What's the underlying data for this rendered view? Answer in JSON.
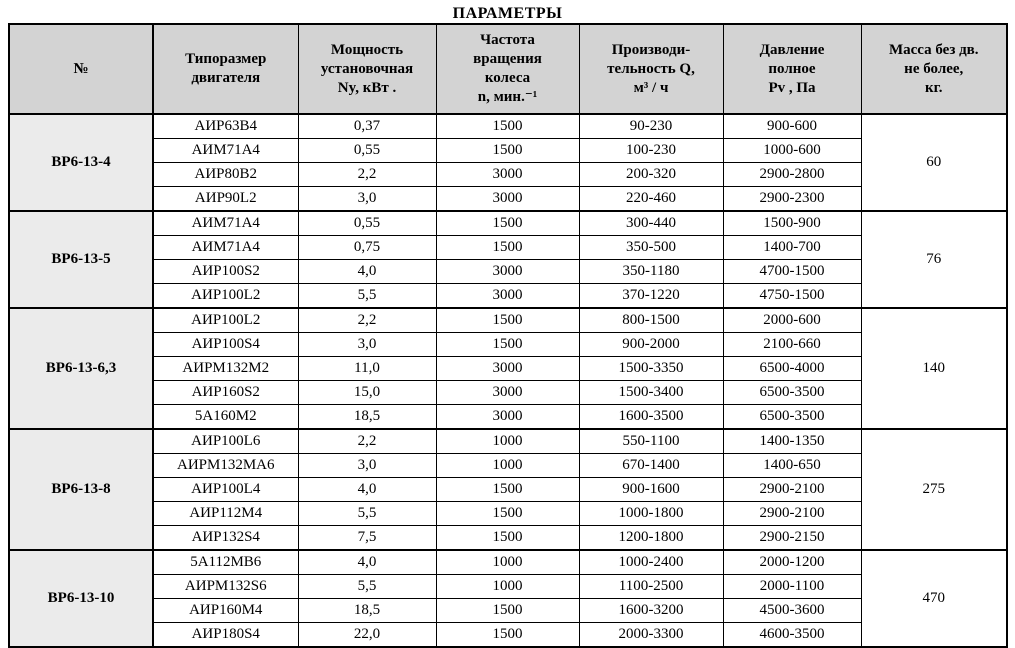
{
  "title": "ПАРАМЕТРЫ",
  "colors": {
    "header_bg": "#d3d3d3",
    "group_bg": "#ebebeb",
    "border": "#000000"
  },
  "table": {
    "headers": [
      "№",
      "Типоразмер\nдвигателя",
      "Мощность\nустановочная\nNy, кВт .",
      "Частота\nвращения\nколеса\nn, мин.⁻¹",
      "Производи-\nтельность Q,\nм³ / ч",
      "Давление\nполное\nPv , Па",
      "Масса без дв.\nне более,\nкг."
    ],
    "groups": [
      {
        "label": "ВР6-13-4",
        "mass": "60",
        "rows": [
          [
            "АИР63В4",
            "0,37",
            "1500",
            "90-230",
            "900-600"
          ],
          [
            "АИМ71А4",
            "0,55",
            "1500",
            "100-230",
            "1000-600"
          ],
          [
            "АИР80В2",
            "2,2",
            "3000",
            "200-320",
            "2900-2800"
          ],
          [
            "АИР90L2",
            "3,0",
            "3000",
            "220-460",
            "2900-2300"
          ]
        ]
      },
      {
        "label": "ВР6-13-5",
        "mass": "76",
        "rows": [
          [
            "АИМ71А4",
            "0,55",
            "1500",
            "300-440",
            "1500-900"
          ],
          [
            "АИМ71А4",
            "0,75",
            "1500",
            "350-500",
            "1400-700"
          ],
          [
            "АИР100S2",
            "4,0",
            "3000",
            "350-1180",
            "4700-1500"
          ],
          [
            "АИР100L2",
            "5,5",
            "3000",
            "370-1220",
            "4750-1500"
          ]
        ]
      },
      {
        "label": "ВР6-13-6,3",
        "mass": "140",
        "rows": [
          [
            "АИР100L2",
            "2,2",
            "1500",
            "800-1500",
            "2000-600"
          ],
          [
            "АИР100S4",
            "3,0",
            "1500",
            "900-2000",
            "2100-660"
          ],
          [
            "АИРМ132М2",
            "11,0",
            "3000",
            "1500-3350",
            "6500-4000"
          ],
          [
            "АИР160S2",
            "15,0",
            "3000",
            "1500-3400",
            "6500-3500"
          ],
          [
            "5А160М2",
            "18,5",
            "3000",
            "1600-3500",
            "6500-3500"
          ]
        ]
      },
      {
        "label": "ВР6-13-8",
        "mass": "275",
        "rows": [
          [
            "АИР100L6",
            "2,2",
            "1000",
            "550-1100",
            "1400-1350"
          ],
          [
            "АИРМ132МА6",
            "3,0",
            "1000",
            "670-1400",
            "1400-650"
          ],
          [
            "АИР100L4",
            "4,0",
            "1500",
            "900-1600",
            "2900-2100"
          ],
          [
            "АИР112М4",
            "5,5",
            "1500",
            "1000-1800",
            "2900-2100"
          ],
          [
            "АИР132S4",
            "7,5",
            "1500",
            "1200-1800",
            "2900-2150"
          ]
        ]
      },
      {
        "label": "ВР6-13-10",
        "mass": "470",
        "rows": [
          [
            "5А112МВ6",
            "4,0",
            "1000",
            "1000-2400",
            "2000-1200"
          ],
          [
            "АИРМ132S6",
            "5,5",
            "1000",
            "1100-2500",
            "2000-1100"
          ],
          [
            "АИР160М4",
            "18,5",
            "1500",
            "1600-3200",
            "4500-3600"
          ],
          [
            "АИР180S4",
            "22,0",
            "1500",
            "2000-3300",
            "4600-3500"
          ]
        ]
      }
    ]
  }
}
